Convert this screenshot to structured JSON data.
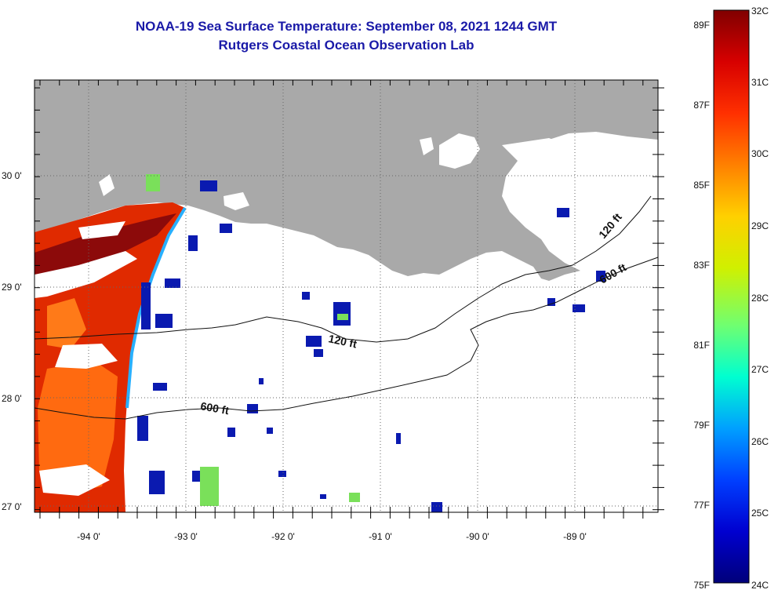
{
  "header": {
    "title": "NOAA-19 Sea Surface Temperature:  September 08, 2021 1244 GMT",
    "subtitle": "Rutgers Coastal Ocean Observation Lab"
  },
  "map": {
    "lon_labels": [
      "-94 0'",
      "-93 0'",
      "-92 0'",
      "-91 0'",
      "-90 0'",
      "-89 0'"
    ],
    "lat_labels": [
      "30 0'",
      "29 0'",
      "28 0'",
      "27 0'"
    ],
    "contours": {
      "shelf": "120 ft",
      "slope": "600 ft"
    },
    "colors": {
      "land": "#a9a9a9",
      "contour": "#111111",
      "frame": "#000000"
    }
  },
  "colorbar": {
    "celsius_labels": [
      "32C",
      "31C",
      "30C",
      "29C",
      "28C",
      "27C",
      "26C",
      "25C",
      "24C"
    ],
    "fahrenheit_labels": [
      "89F",
      "87F",
      "85F",
      "83F",
      "81F",
      "79F",
      "77F",
      "75F"
    ],
    "gradient": [
      "#800000",
      "#d70000",
      "#ff3000",
      "#ff8000",
      "#ffd000",
      "#d0f000",
      "#70ff70",
      "#00ffd0",
      "#00a0ff",
      "#0040ff",
      "#0000d0",
      "#00007a"
    ]
  }
}
